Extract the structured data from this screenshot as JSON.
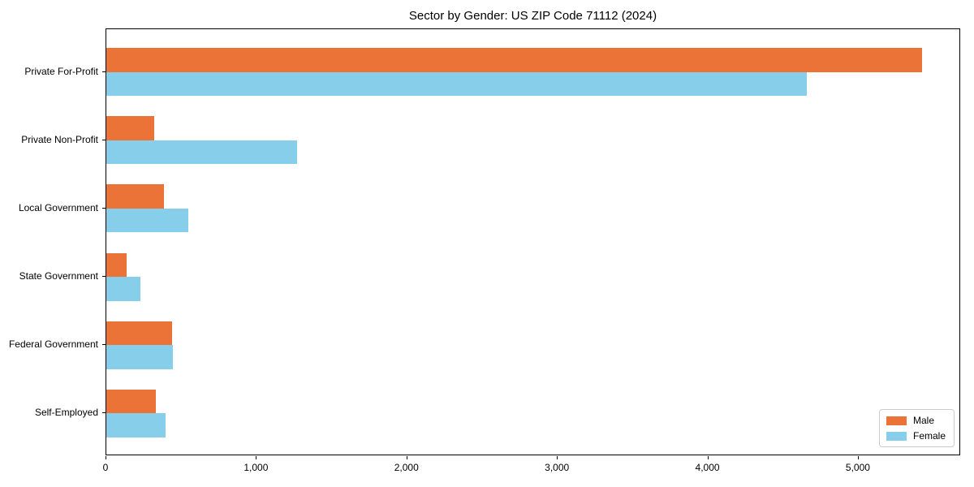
{
  "chart_data": {
    "type": "bar",
    "orientation": "horizontal",
    "title": "Sector by Gender: US ZIP Code 71112 (2024)",
    "categories": [
      "Private For-Profit",
      "Private Non-Profit",
      "Local Government",
      "State Government",
      "Federal Government",
      "Self-Employed"
    ],
    "series": [
      {
        "name": "Male",
        "color": "#EB7337",
        "values": [
          5420,
          318,
          381,
          133,
          435,
          327
        ]
      },
      {
        "name": "Female",
        "color": "#87CEEB",
        "values": [
          4655,
          1266,
          543,
          225,
          444,
          394
        ]
      }
    ],
    "xlabel": "",
    "ylabel": "",
    "xlim": [
      0,
      5680
    ],
    "x_ticks": [
      0,
      1000,
      2000,
      3000,
      4000,
      5000
    ],
    "x_tick_labels": [
      "0",
      "1,000",
      "2,000",
      "3,000",
      "4,000",
      "5,000"
    ],
    "grid": false,
    "legend": {
      "position": "lower right",
      "entries": [
        "Male",
        "Female"
      ]
    },
    "bar_width_fraction": 0.35,
    "frame_color": "#000000",
    "background_color": "#ffffff"
  }
}
